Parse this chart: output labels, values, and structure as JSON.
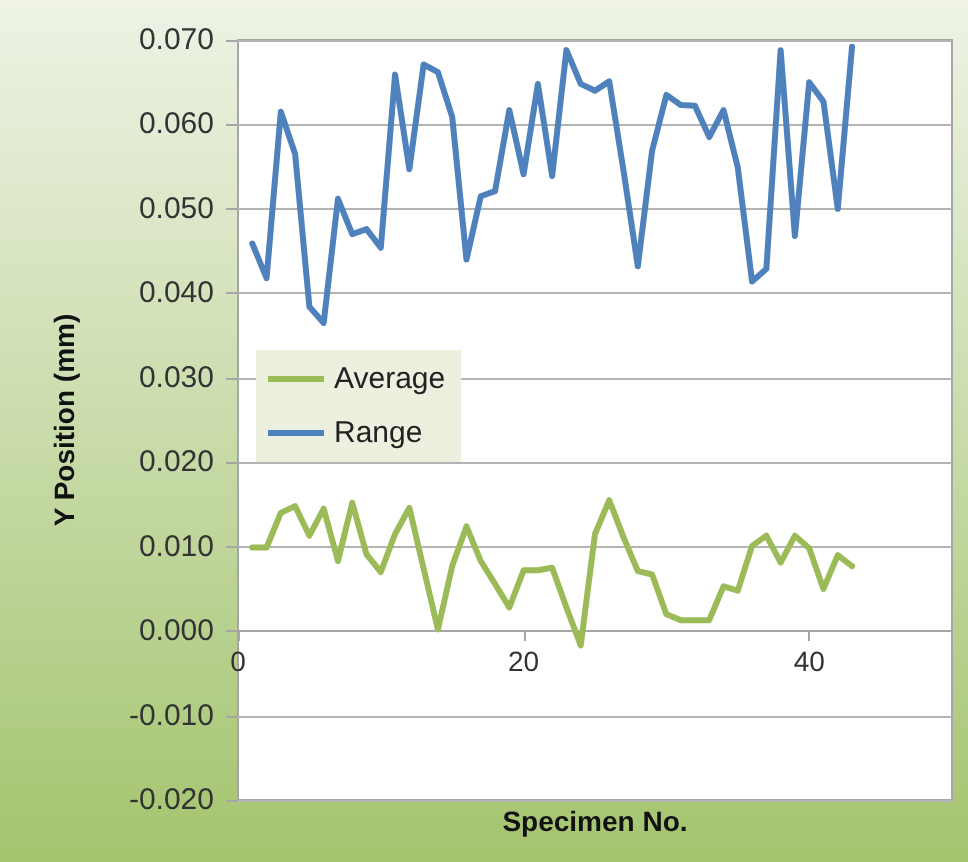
{
  "chart_data": {
    "type": "line",
    "xlabel": "Specimen No.",
    "ylabel": "Y Position (mm)",
    "x": [
      1,
      2,
      3,
      4,
      5,
      6,
      7,
      8,
      9,
      10,
      11,
      12,
      13,
      14,
      15,
      16,
      17,
      18,
      19,
      20,
      21,
      22,
      23,
      24,
      25,
      26,
      27,
      28,
      29,
      30,
      31,
      32,
      33,
      34,
      35,
      36,
      37,
      38,
      39,
      40,
      41,
      42,
      43
    ],
    "series": [
      {
        "name": "Average",
        "color": "#9bbb59",
        "values": [
          0.0099,
          0.0099,
          0.014,
          0.0148,
          0.0113,
          0.0145,
          0.0083,
          0.0152,
          0.0091,
          0.007,
          0.0115,
          0.0146,
          0.0074,
          0.0002,
          0.0077,
          0.0124,
          0.0083,
          0.0056,
          0.0028,
          0.0072,
          0.0072,
          0.0075,
          0.0028,
          -0.0017,
          0.0115,
          0.0155,
          0.0111,
          0.0071,
          0.0067,
          0.002,
          0.0013,
          0.0013,
          0.0013,
          0.0053,
          0.0048,
          0.0101,
          0.0113,
          0.0081,
          0.0113,
          0.0098,
          0.005,
          0.009,
          0.0077
        ]
      },
      {
        "name": "Range",
        "color": "#4f81bd",
        "values": [
          0.0459,
          0.0418,
          0.0615,
          0.0565,
          0.0384,
          0.0365,
          0.0512,
          0.047,
          0.0476,
          0.0454,
          0.0659,
          0.0547,
          0.0671,
          0.0662,
          0.0609,
          0.044,
          0.0515,
          0.0521,
          0.0617,
          0.0541,
          0.0648,
          0.0539,
          0.0688,
          0.0648,
          0.064,
          0.0651,
          0.0545,
          0.0432,
          0.0569,
          0.0635,
          0.0623,
          0.0622,
          0.0585,
          0.0617,
          0.0549,
          0.0414,
          0.0429,
          0.0688,
          0.0468,
          0.065,
          0.0627,
          0.05,
          0.0692
        ]
      }
    ],
    "xlim": [
      0,
      50
    ],
    "xticks": [
      0,
      20,
      40
    ],
    "ylim": [
      -0.02,
      0.07
    ],
    "yticks": [
      {
        "value": -0.02,
        "label": "-0.020"
      },
      {
        "value": -0.01,
        "label": "-0.010"
      },
      {
        "value": 0,
        "label": "0.000"
      },
      {
        "value": 0.01,
        "label": "0.010"
      },
      {
        "value": 0.02,
        "label": "0.020"
      },
      {
        "value": 0.03,
        "label": "0.030"
      },
      {
        "value": 0.04,
        "label": "0.040"
      },
      {
        "value": 0.05,
        "label": "0.050"
      },
      {
        "value": 0.06,
        "label": "0.060"
      },
      {
        "value": 0.07,
        "label": "0.070"
      }
    ],
    "grid": "y",
    "legend": "left",
    "marker": "none",
    "line_style": "solid"
  }
}
